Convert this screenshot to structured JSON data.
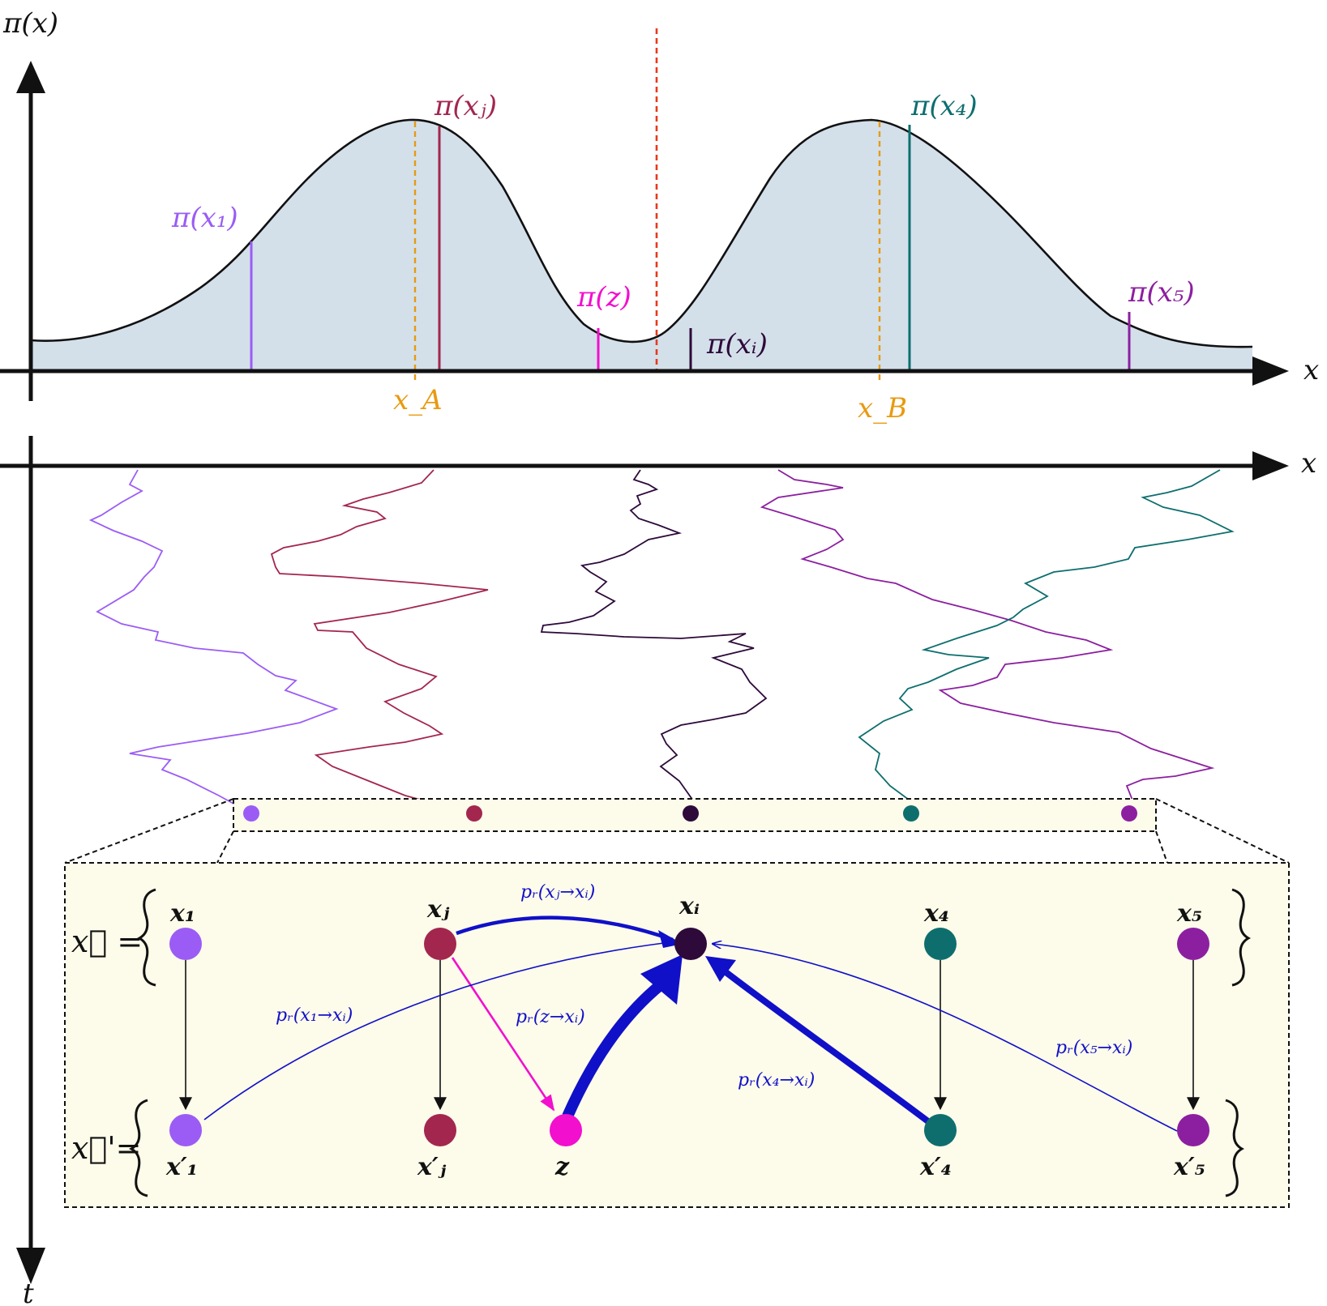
{
  "colors": {
    "x1": "#9b5cf5",
    "xj": "#a3264f",
    "z": "#f20fce",
    "xi": "#2d0a3a",
    "x4": "#0e6e6e",
    "x5": "#8c1fa0",
    "xA": "#e89a10",
    "divider": "#e8391a",
    "fill": "#d3e0ea",
    "panel": "#fdfbea",
    "edge": "#1010c8"
  },
  "top_axes": {
    "y_label": "π(x)",
    "x_label": "x",
    "pi_labels": {
      "x1": "π(x₁)",
      "xj": "π(xⱼ)",
      "z": "π(z)",
      "xi": "π(xᵢ)",
      "x4": "π(x₄)",
      "x5": "π(x₅)"
    },
    "modes": {
      "a": "x_A",
      "b": "x_B"
    }
  },
  "bottom_axes": {
    "x_label": "x",
    "t_label": "t"
  },
  "panel": {
    "vec_x": "x⃗ =",
    "vec_xp": "x⃗'=",
    "nodes_top": [
      "x₁",
      "xⱼ",
      "xᵢ",
      "x₄",
      "x₅"
    ],
    "nodes_bottom": [
      "x′₁",
      "x′ⱼ",
      "z",
      "x′₄",
      "x′₅"
    ],
    "edges": {
      "j": "pᵣ(xⱼ→xᵢ)",
      "one": "pᵣ(x₁→xᵢ)",
      "z": "pᵣ(z→xᵢ)",
      "four": "pᵣ(x₄→xᵢ)",
      "five": "pᵣ(x₅→xᵢ)"
    }
  }
}
